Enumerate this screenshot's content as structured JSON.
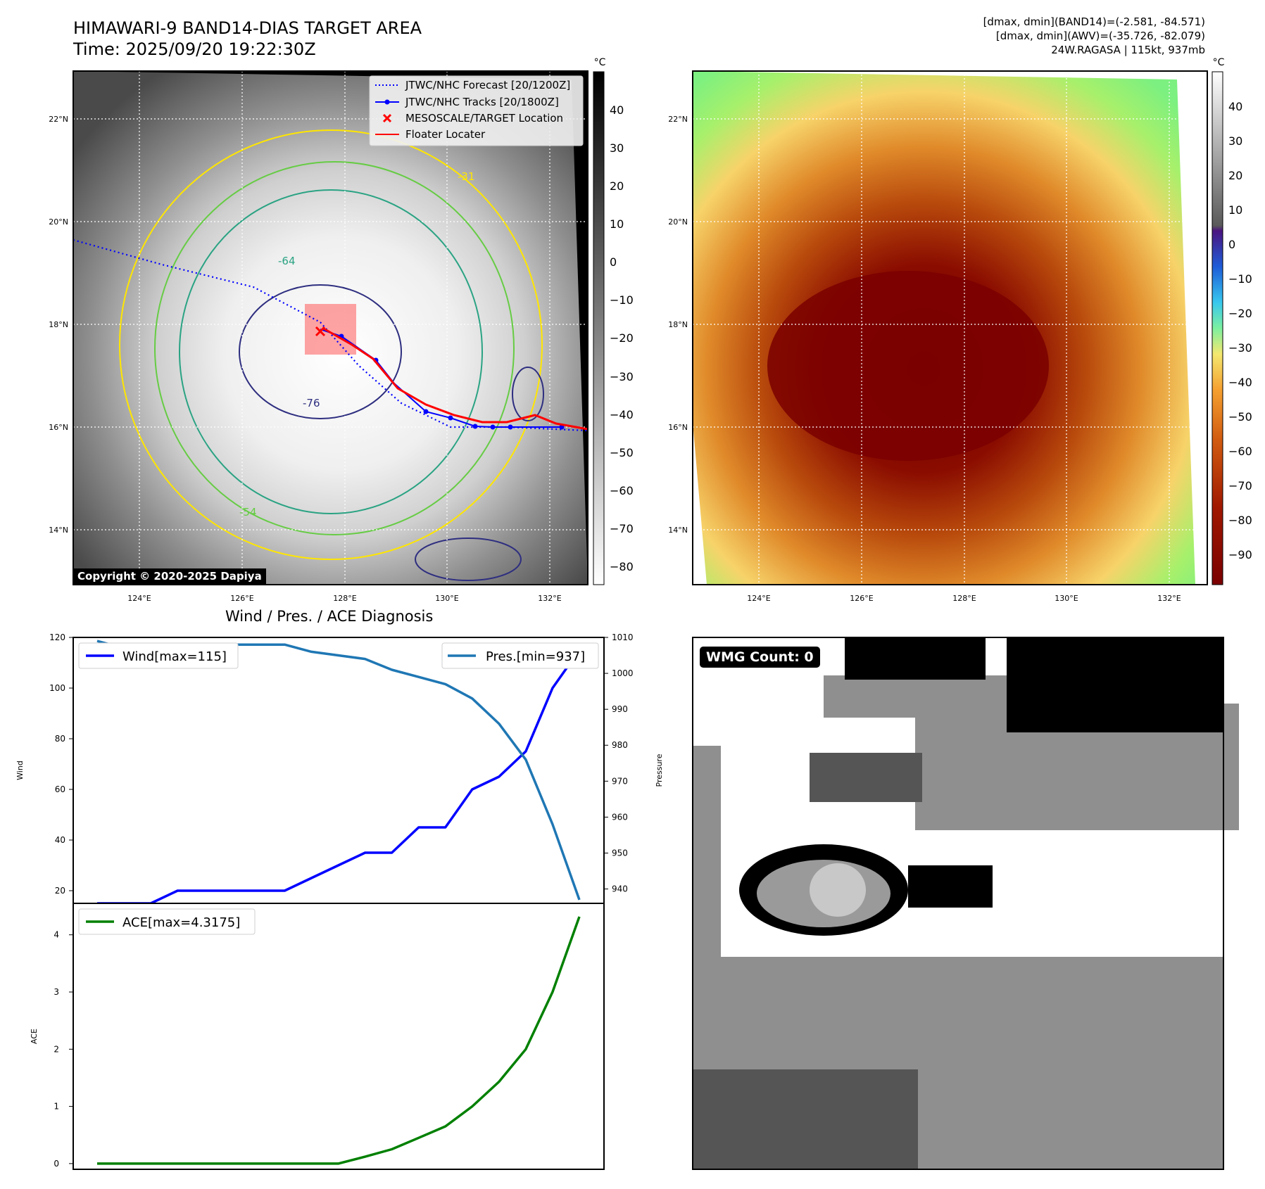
{
  "title_line1": "HIMAWARI-9 BAND14-DIAS TARGET AREA",
  "title_line2": "Time: 2025/09/20 19:22:30Z",
  "stats": [
    "[dmax, dmin](BAND14)=(-2.581, -84.571)",
    "[dmax, dmin](AWV)=(-35.726, -82.079)",
    "24W.RAGASA | 115kt, 937mb"
  ],
  "copyright": "Copyright © 2020-2025 Dapiya",
  "map": {
    "lat_labels": [
      "22°N",
      "20°N",
      "18°N",
      "16°N",
      "14°N"
    ],
    "lon_labels": [
      "124°E",
      "126°E",
      "128°E",
      "130°E",
      "132°E"
    ],
    "contour_labels": [
      "-31",
      "-54",
      "-64",
      "-76"
    ],
    "legend": [
      {
        "label": "JTWC/NHC Forecast [20/1200Z]",
        "color": "#0000ff",
        "style": "dotted"
      },
      {
        "label": "JTWC/NHC Tracks [20/1800Z]",
        "color": "#0000ff",
        "style": "solid-dot"
      },
      {
        "label": "MESOSCALE/TARGET Location",
        "color": "#ff0000",
        "style": "x"
      },
      {
        "label": "Floater Locater",
        "color": "#ff0000",
        "style": "solid"
      }
    ]
  },
  "colorbar_gray": {
    "unit": "°C",
    "ticks": [
      "40",
      "30",
      "20",
      "10",
      "0",
      "−10",
      "−20",
      "−30",
      "−40",
      "−50",
      "−60",
      "−70",
      "−80"
    ]
  },
  "colorbar_color": {
    "unit": "°C",
    "ticks": [
      "40",
      "30",
      "20",
      "10",
      "0",
      "−10",
      "−20",
      "−30",
      "−40",
      "−50",
      "−60",
      "−70",
      "−80",
      "−90"
    ]
  },
  "diagnosis_title": "Wind / Pres. / ACE Diagnosis",
  "wmg_label": "WMG Count: 0",
  "chart_data": [
    {
      "type": "line",
      "title": "Wind / Pres. / ACE Diagnosis",
      "ylabel": "Wind",
      "ylabel_right": "Pressure",
      "ylim": [
        15,
        120
      ],
      "ylim_right": [
        936,
        1010
      ],
      "yticks": [
        20,
        40,
        60,
        80,
        100,
        120
      ],
      "yticks_right": [
        940,
        950,
        960,
        970,
        980,
        990,
        1000,
        1010
      ],
      "series": [
        {
          "name": "Wind[max=115]",
          "color": "#0000ff",
          "axis": "left",
          "values": [
            15,
            15,
            15,
            20,
            20,
            20,
            20,
            20,
            25,
            30,
            35,
            35,
            45,
            45,
            60,
            65,
            75,
            100,
            115
          ]
        },
        {
          "name": "Pres.[min=937]",
          "color": "#1f77b4",
          "axis": "right",
          "values": [
            1009,
            1007,
            1007,
            1008,
            1008,
            1008,
            1008,
            1008,
            1006,
            1005,
            1004,
            1001,
            999,
            997,
            993,
            986,
            976,
            958,
            937
          ]
        }
      ]
    },
    {
      "type": "line",
      "ylabel": "ACE",
      "ylim": [
        -0.1,
        4.55
      ],
      "yticks": [
        0,
        1,
        2,
        3,
        4
      ],
      "series": [
        {
          "name": "ACE[max=4.3175]",
          "color": "#008000",
          "values": [
            0,
            0,
            0,
            0,
            0,
            0,
            0,
            0,
            0,
            0,
            0.12,
            0.25,
            0.45,
            0.65,
            1.0,
            1.43,
            2.0,
            3.0,
            4.3175
          ]
        }
      ]
    }
  ]
}
